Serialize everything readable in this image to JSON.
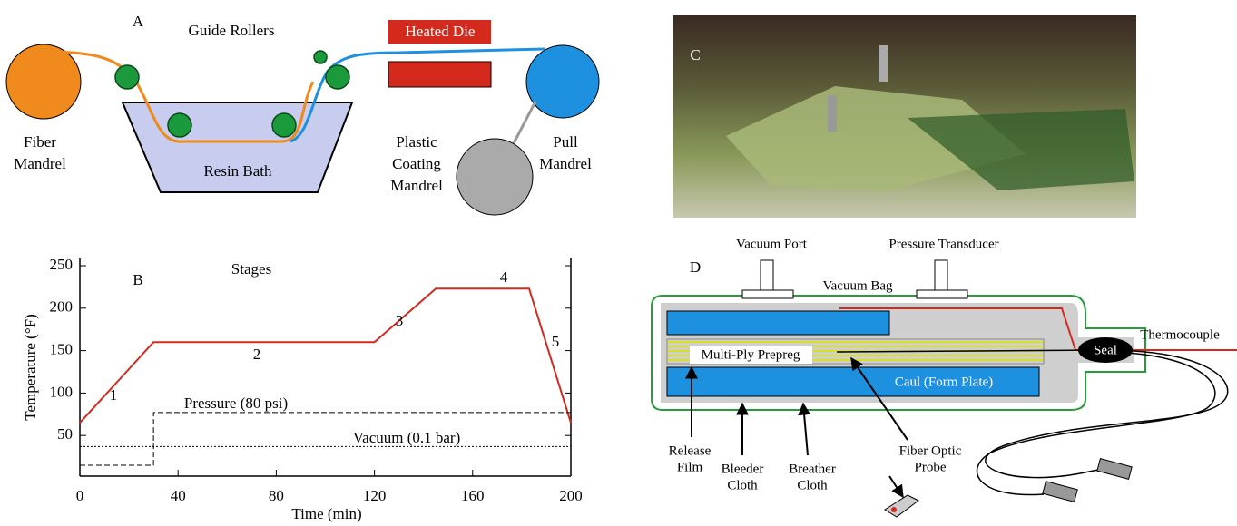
{
  "panel_a": {
    "label": "A",
    "guide_rollers": "Guide Rollers",
    "heated_die": "Heated Die",
    "fiber_mandrel": [
      "Fiber",
      "Mandrel"
    ],
    "resin_bath": "Resin Bath",
    "plastic_coating_mandrel": [
      "Plastic",
      "Coating",
      "Mandrel"
    ],
    "pull_mandrel": [
      "Pull",
      "Mandrel"
    ]
  },
  "panel_c": {
    "label": "C"
  },
  "panel_d": {
    "label": "D",
    "vacuum_port": "Vacuum Port",
    "pressure_transducer": "Pressure Transducer",
    "vacuum_bag": "Vacuum Bag",
    "thermocouple": "Thermocouple",
    "seal": "Seal",
    "prepreg": "Multi-Ply Prepreg",
    "caul": "Caul (Form Plate)",
    "release_film": [
      "Release",
      "Film"
    ],
    "bleeder_cloth": [
      "Bleeder",
      "Cloth"
    ],
    "breather_cloth": [
      "Breather",
      "Cloth"
    ],
    "fiber_optic_probe": [
      "Fiber Optic",
      "Probe"
    ]
  },
  "chart_data": {
    "type": "line",
    "panel_label": "B",
    "stages_title": "Stages",
    "stage_labels": [
      "1",
      "2",
      "3",
      "4",
      "5"
    ],
    "xlabel": "Time (min)",
    "ylabel": "Temperature (°F)",
    "xlim": [
      0,
      200
    ],
    "ylim": [
      0,
      250
    ],
    "xticks": [
      0,
      40,
      80,
      120,
      160,
      200
    ],
    "yticks": [
      50,
      100,
      150,
      200,
      250
    ],
    "series": [
      {
        "x": [
          0,
          30,
          120,
          145,
          183,
          200
        ],
        "values": [
          65,
          160,
          160,
          223,
          223,
          65
        ],
        "color": "#d42a1e",
        "style": "solid"
      },
      {
        "name": "Pressure (80 psi)",
        "x": [
          0,
          30,
          30,
          200
        ],
        "values": [
          15,
          15,
          77,
          77
        ],
        "color": "#000000",
        "style": "dashed"
      },
      {
        "name": "Vacuum (0.1 bar)",
        "x": [
          0,
          200
        ],
        "values": [
          37,
          37
        ],
        "color": "#000000",
        "style": "dotted"
      }
    ]
  }
}
